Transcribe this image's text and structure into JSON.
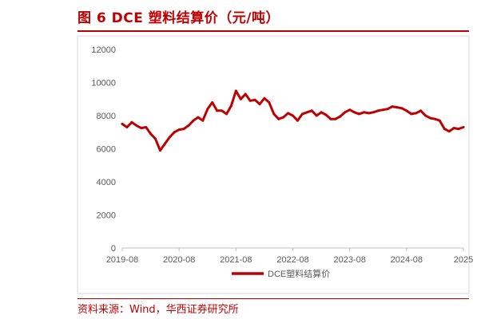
{
  "figure": {
    "title": "图 6  DCE 塑料结算价（元/吨）",
    "source": "资料来源：Wind，华西证券研究所"
  },
  "chart_data": {
    "type": "line",
    "title": "",
    "xlabel": "",
    "ylabel": "",
    "ylim": [
      0,
      12000
    ],
    "yticks": [
      0,
      2000,
      4000,
      6000,
      8000,
      10000,
      12000
    ],
    "ytick_labels": [
      "0",
      "2000",
      "4000",
      "6000",
      "8000",
      "10000",
      "12000"
    ],
    "xlim": [
      "2019-08",
      "2025-08"
    ],
    "xtick_labels": [
      "2019-08",
      "2020-08",
      "2021-08",
      "2022-08",
      "2023-08",
      "2024-08",
      "2025"
    ],
    "grid": false,
    "legend_position": "bottom",
    "series": [
      {
        "name": "DCE塑料结算价",
        "color": "#c00000",
        "x": [
          "2019-08",
          "2019-09",
          "2019-10",
          "2019-11",
          "2019-12",
          "2020-01",
          "2020-02",
          "2020-03",
          "2020-04",
          "2020-05",
          "2020-06",
          "2020-07",
          "2020-08",
          "2020-09",
          "2020-10",
          "2020-11",
          "2020-12",
          "2021-01",
          "2021-02",
          "2021-03",
          "2021-04",
          "2021-05",
          "2021-06",
          "2021-07",
          "2021-08",
          "2021-09",
          "2021-10",
          "2021-11",
          "2021-12",
          "2022-01",
          "2022-02",
          "2022-03",
          "2022-04",
          "2022-05",
          "2022-06",
          "2022-07",
          "2022-08",
          "2022-09",
          "2022-10",
          "2022-11",
          "2022-12",
          "2023-01",
          "2023-02",
          "2023-03",
          "2023-04",
          "2023-05",
          "2023-06",
          "2023-07",
          "2023-08",
          "2023-09",
          "2023-10",
          "2023-11",
          "2023-12",
          "2024-01",
          "2024-02",
          "2024-03",
          "2024-04",
          "2024-05",
          "2024-06",
          "2024-07",
          "2024-08",
          "2024-09",
          "2024-10",
          "2024-11",
          "2024-12",
          "2025-01",
          "2025-02",
          "2025-03",
          "2025-04",
          "2025-05",
          "2025-06",
          "2025-07",
          "2025-08"
        ],
        "values": [
          7500,
          7300,
          7600,
          7400,
          7250,
          7300,
          6900,
          6600,
          5900,
          6300,
          6700,
          7000,
          7150,
          7200,
          7400,
          7700,
          7900,
          7700,
          8400,
          8800,
          8300,
          8300,
          8100,
          8600,
          9500,
          9000,
          9300,
          8900,
          8950,
          8700,
          9050,
          8800,
          8100,
          7800,
          7900,
          8150,
          8000,
          7700,
          8100,
          8200,
          8300,
          8000,
          8200,
          8050,
          7800,
          7800,
          7950,
          8200,
          8350,
          8200,
          8100,
          8200,
          8150,
          8200,
          8300,
          8350,
          8400,
          8550,
          8500,
          8450,
          8300,
          8100,
          8150,
          8300,
          8000,
          7850,
          7800,
          7700,
          7200,
          7050,
          7250,
          7200,
          7300
        ]
      }
    ]
  }
}
